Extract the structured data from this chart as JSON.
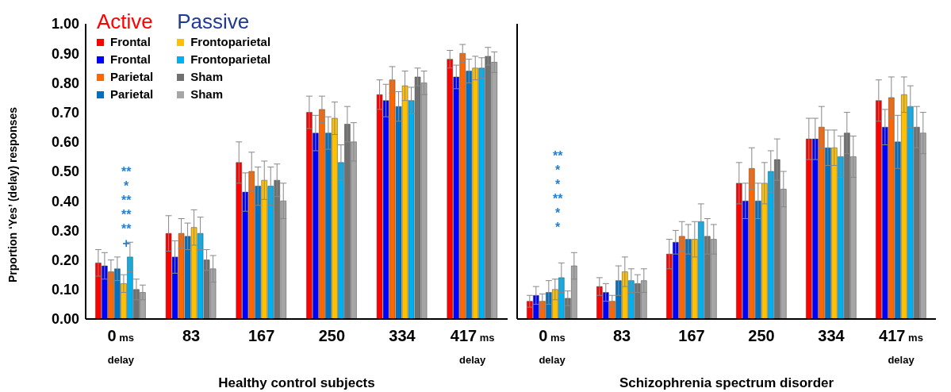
{
  "chart_data": [
    {
      "type": "bar",
      "xlabel": "Healthy control subjects",
      "ylabel": "Prportion ‘Yes’ (delay) responses",
      "categories": [
        "0 ms$_{delay}$",
        "83",
        "167",
        "250",
        "334",
        "417 ms$_{delay}$"
      ],
      "series": [
        {
          "name": "Frontal",
          "color": "#ff0000",
          "values": [
            0.19,
            0.29,
            0.53,
            0.7,
            0.76,
            0.88
          ],
          "errors": [
            0.045,
            0.06,
            0.07,
            0.055,
            0.05,
            0.03
          ]
        },
        {
          "name": "Frontal",
          "color": "#0000ff",
          "values": [
            0.18,
            0.21,
            0.43,
            0.63,
            0.74,
            0.82
          ],
          "errors": [
            0.045,
            0.055,
            0.065,
            0.06,
            0.055,
            0.04
          ]
        },
        {
          "name": "Parietal",
          "color": "#ff6600",
          "values": [
            0.16,
            0.29,
            0.5,
            0.71,
            0.81,
            0.9
          ],
          "errors": [
            0.04,
            0.05,
            0.065,
            0.045,
            0.045,
            0.03
          ]
        },
        {
          "name": "Parietal",
          "color": "#0070c0",
          "values": [
            0.17,
            0.28,
            0.45,
            0.63,
            0.72,
            0.84
          ],
          "errors": [
            0.04,
            0.045,
            0.065,
            0.055,
            0.05,
            0.04
          ]
        },
        {
          "name": "Frontoparietal",
          "color": "#ffc000",
          "values": [
            0.12,
            0.31,
            0.47,
            0.68,
            0.79,
            0.85
          ],
          "errors": [
            0.03,
            0.06,
            0.065,
            0.055,
            0.05,
            0.04
          ]
        },
        {
          "name": "Frontoparietal",
          "color": "#00b0f0",
          "values": [
            0.21,
            0.29,
            0.45,
            0.53,
            0.74,
            0.85
          ],
          "errors": [
            0.05,
            0.055,
            0.065,
            0.06,
            0.045,
            0.035
          ]
        },
        {
          "name": "Sham",
          "color": "#707070",
          "values": [
            0.1,
            0.2,
            0.47,
            0.66,
            0.82,
            0.89
          ],
          "errors": [
            0.035,
            0.035,
            0.055,
            0.06,
            0.03,
            0.03
          ]
        },
        {
          "name": "Sham",
          "color": "#a6a6a6",
          "values": [
            0.09,
            0.17,
            0.4,
            0.6,
            0.8,
            0.87
          ],
          "errors": [
            0.025,
            0.045,
            0.06,
            0.065,
            0.04,
            0.035
          ]
        }
      ],
      "ylim": [
        0,
        1
      ],
      "yticks": [
        {
          "value": 0,
          "label": "0.00"
        },
        {
          "value": 0.1,
          "label": "0.10"
        },
        {
          "value": 0.2,
          "label": "0.20"
        },
        {
          "value": 0.3,
          "label": "0.30"
        },
        {
          "value": 0.4,
          "label": "0.40"
        },
        {
          "value": 0.5,
          "label": "0.50"
        },
        {
          "value": 0.6,
          "label": "0.60"
        },
        {
          "value": 0.7,
          "label": "0.70"
        },
        {
          "value": 0.8,
          "label": "0.80"
        },
        {
          "value": 0.9,
          "label": "0.90"
        },
        {
          "value": 1,
          "label": "1.00"
        }
      ],
      "legend": "top left",
      "grid": false,
      "annotations": [
        "Active",
        "Passive",
        "**",
        "*",
        "**",
        "**",
        "**",
        "+"
      ]
    },
    {
      "type": "bar",
      "xlabel": "Schizophrenia spectrum disorder",
      "categories": [
        "0 ms$_{delay}$",
        "83",
        "167",
        "250",
        "334",
        "417 ms$_{delay}$"
      ],
      "series": [
        {
          "color": "#ff0000",
          "values": [
            0.06,
            0.11,
            0.22,
            0.46,
            0.61,
            0.74
          ],
          "errors": [
            0.02,
            0.03,
            0.05,
            0.07,
            0.07,
            0.07
          ]
        },
        {
          "color": "#0000ff",
          "values": [
            0.08,
            0.09,
            0.26,
            0.4,
            0.61,
            0.65
          ],
          "errors": [
            0.03,
            0.03,
            0.04,
            0.06,
            0.07,
            0.06
          ]
        },
        {
          "color": "#ff6600",
          "values": [
            0.06,
            0.06,
            0.28,
            0.51,
            0.65,
            0.75
          ],
          "errors": [
            0.025,
            0.02,
            0.05,
            0.07,
            0.07,
            0.07
          ]
        },
        {
          "color": "#0070c0",
          "values": [
            0.09,
            0.13,
            0.27,
            0.4,
            0.58,
            0.6
          ],
          "errors": [
            0.04,
            0.05,
            0.05,
            0.06,
            0.06,
            0.09
          ]
        },
        {
          "color": "#ffc000",
          "values": [
            0.1,
            0.16,
            0.27,
            0.46,
            0.58,
            0.76
          ],
          "errors": [
            0.035,
            0.05,
            0.06,
            0.07,
            0.06,
            0.06
          ]
        },
        {
          "color": "#00b0f0",
          "values": [
            0.14,
            0.13,
            0.33,
            0.5,
            0.55,
            0.72
          ],
          "errors": [
            0.05,
            0.04,
            0.06,
            0.07,
            0.07,
            0.07
          ]
        },
        {
          "color": "#707070",
          "values": [
            0.07,
            0.12,
            0.28,
            0.54,
            0.63,
            0.65
          ],
          "errors": [
            0.025,
            0.03,
            0.06,
            0.07,
            0.07,
            0.07
          ]
        },
        {
          "color": "#a6a6a6",
          "values": [
            0.18,
            0.13,
            0.27,
            0.44,
            0.55,
            0.63
          ],
          "errors": [
            0.045,
            0.04,
            0.05,
            0.06,
            0.07,
            0.07
          ]
        }
      ],
      "ylim": [
        0,
        1
      ],
      "tick_labels": "x",
      "grid": false,
      "annotations": [
        "**",
        "*",
        "*",
        "**",
        "*",
        "*"
      ]
    }
  ]
}
